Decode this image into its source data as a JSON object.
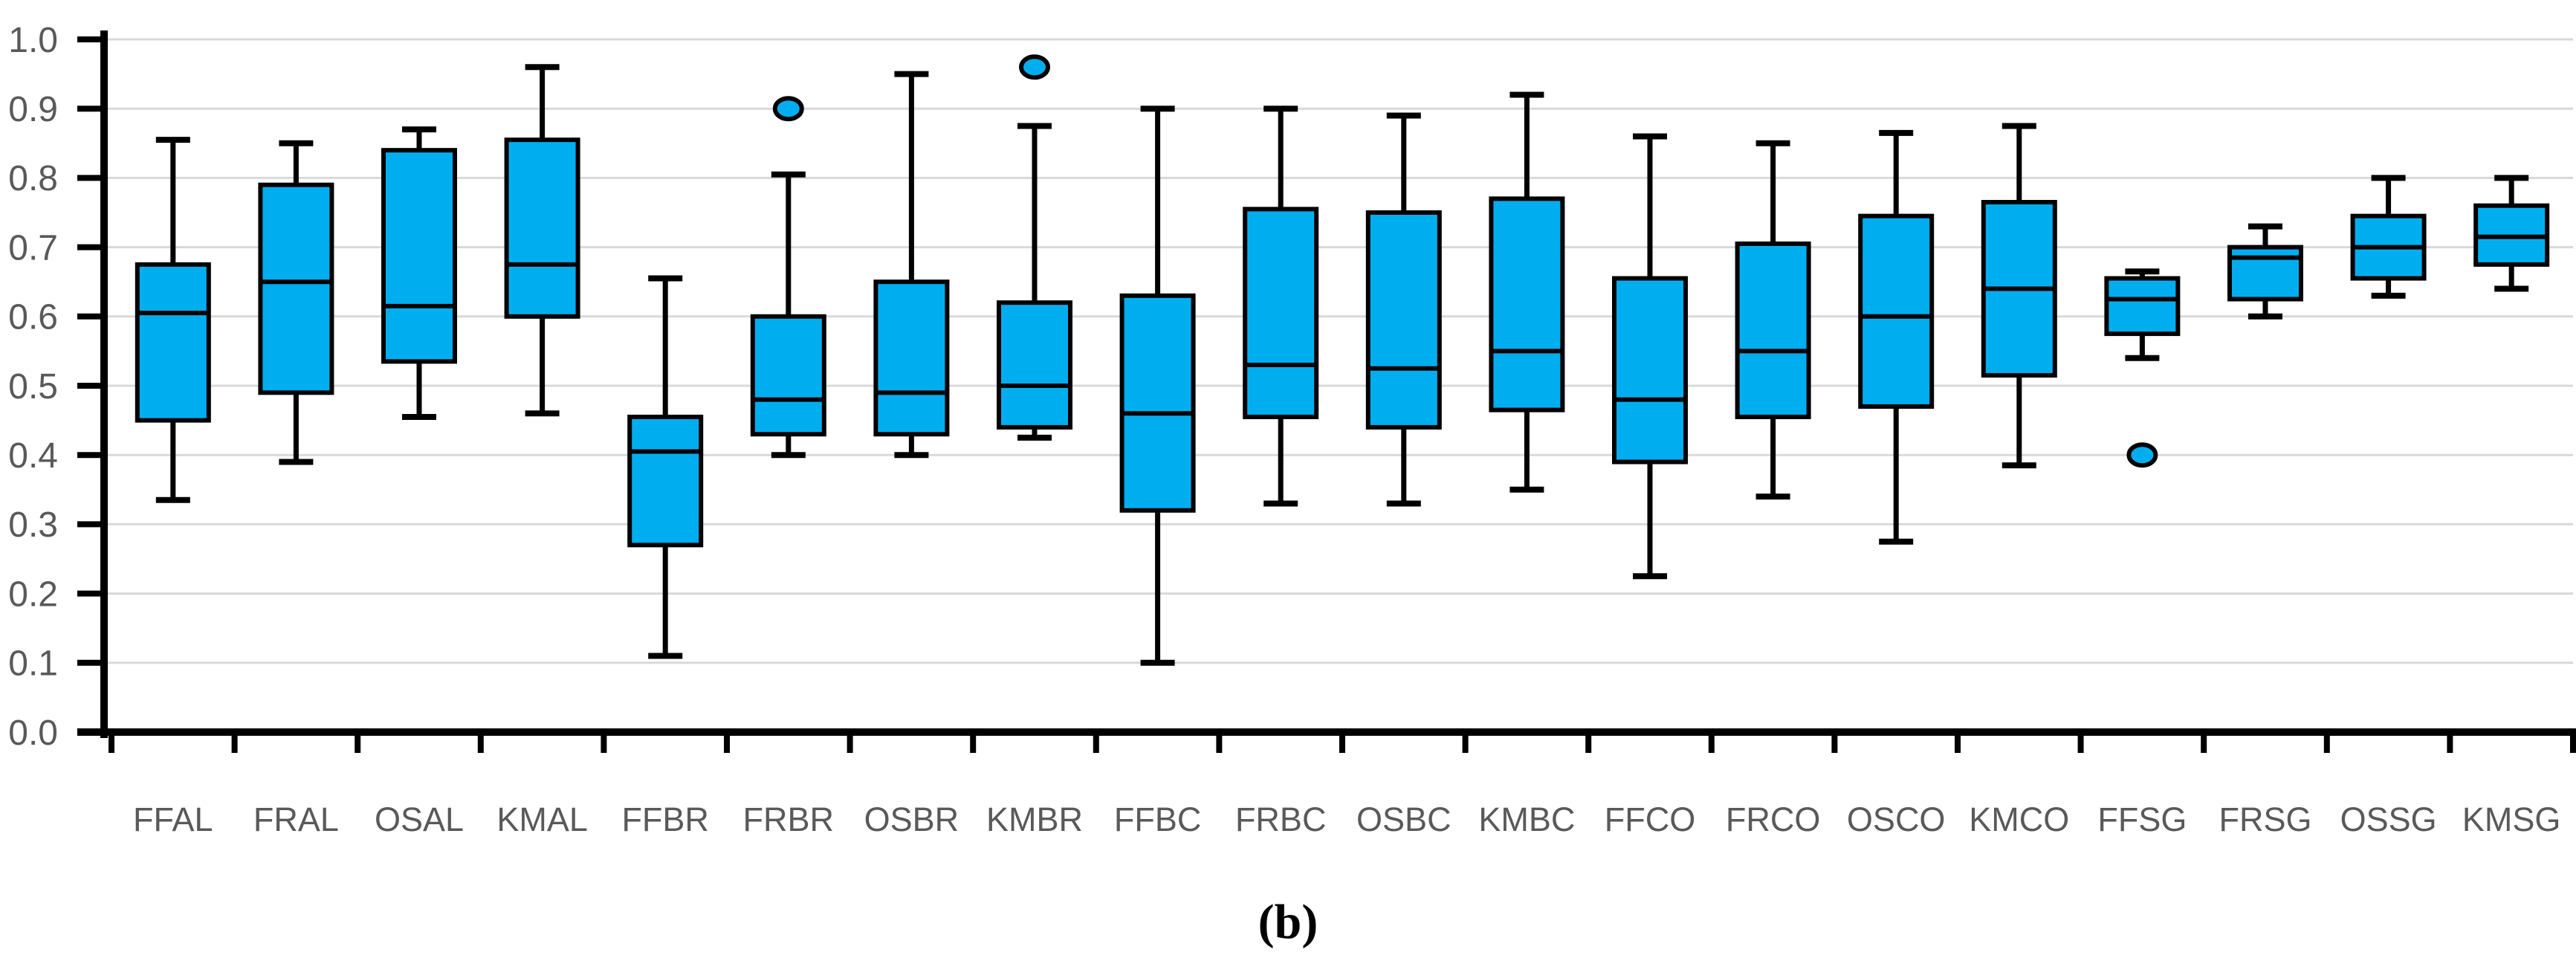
{
  "figure": {
    "caption": "(b)",
    "background": "#FFFFFF"
  },
  "chart_data": {
    "type": "box",
    "title": "",
    "xlabel": "",
    "ylabel": "",
    "ylim": [
      0.0,
      1.0
    ],
    "grid": true,
    "ytick_labels": [
      "0.0",
      "0.1",
      "0.2",
      "0.3",
      "0.4",
      "0.5",
      "0.6",
      "0.7",
      "0.8",
      "0.9",
      "1.0"
    ],
    "categories": [
      "FFAL",
      "FRAL",
      "OSAL",
      "KMAL",
      "FFBR",
      "FRBR",
      "OSBR",
      "KMBR",
      "FFBC",
      "FRBC",
      "OSBC",
      "KMBC",
      "FFCO",
      "FRCO",
      "OSCO",
      "KMCO",
      "FFSG",
      "FRSG",
      "OSSG",
      "KMSG"
    ],
    "boxes": [
      {
        "label": "FFAL",
        "whisker_low": 0.335,
        "q1": 0.45,
        "median": 0.605,
        "q3": 0.675,
        "whisker_high": 0.855,
        "outliers": []
      },
      {
        "label": "FRAL",
        "whisker_low": 0.39,
        "q1": 0.49,
        "median": 0.65,
        "q3": 0.79,
        "whisker_high": 0.85,
        "outliers": []
      },
      {
        "label": "OSAL",
        "whisker_low": 0.455,
        "q1": 0.535,
        "median": 0.615,
        "q3": 0.84,
        "whisker_high": 0.87,
        "outliers": []
      },
      {
        "label": "KMAL",
        "whisker_low": 0.46,
        "q1": 0.6,
        "median": 0.675,
        "q3": 0.855,
        "whisker_high": 0.96,
        "outliers": []
      },
      {
        "label": "FFBR",
        "whisker_low": 0.11,
        "q1": 0.27,
        "median": 0.405,
        "q3": 0.455,
        "whisker_high": 0.655,
        "outliers": []
      },
      {
        "label": "FRBR",
        "whisker_low": 0.4,
        "q1": 0.43,
        "median": 0.48,
        "q3": 0.6,
        "whisker_high": 0.805,
        "outliers": [
          0.9
        ]
      },
      {
        "label": "OSBR",
        "whisker_low": 0.4,
        "q1": 0.43,
        "median": 0.49,
        "q3": 0.65,
        "whisker_high": 0.95,
        "outliers": []
      },
      {
        "label": "KMBR",
        "whisker_low": 0.425,
        "q1": 0.44,
        "median": 0.5,
        "q3": 0.62,
        "whisker_high": 0.875,
        "outliers": [
          0.96
        ]
      },
      {
        "label": "FFBC",
        "whisker_low": 0.1,
        "q1": 0.32,
        "median": 0.46,
        "q3": 0.63,
        "whisker_high": 0.9,
        "outliers": []
      },
      {
        "label": "FRBC",
        "whisker_low": 0.33,
        "q1": 0.455,
        "median": 0.53,
        "q3": 0.755,
        "whisker_high": 0.9,
        "outliers": []
      },
      {
        "label": "OSBC",
        "whisker_low": 0.33,
        "q1": 0.44,
        "median": 0.525,
        "q3": 0.75,
        "whisker_high": 0.89,
        "outliers": []
      },
      {
        "label": "KMBC",
        "whisker_low": 0.35,
        "q1": 0.465,
        "median": 0.55,
        "q3": 0.77,
        "whisker_high": 0.92,
        "outliers": []
      },
      {
        "label": "FFCO",
        "whisker_low": 0.225,
        "q1": 0.39,
        "median": 0.48,
        "q3": 0.655,
        "whisker_high": 0.86,
        "outliers": []
      },
      {
        "label": "FRCO",
        "whisker_low": 0.34,
        "q1": 0.455,
        "median": 0.55,
        "q3": 0.705,
        "whisker_high": 0.85,
        "outliers": []
      },
      {
        "label": "OSCO",
        "whisker_low": 0.275,
        "q1": 0.47,
        "median": 0.6,
        "q3": 0.745,
        "whisker_high": 0.865,
        "outliers": []
      },
      {
        "label": "KMCO",
        "whisker_low": 0.385,
        "q1": 0.515,
        "median": 0.64,
        "q3": 0.765,
        "whisker_high": 0.875,
        "outliers": []
      },
      {
        "label": "FFSG",
        "whisker_low": 0.54,
        "q1": 0.575,
        "median": 0.625,
        "q3": 0.655,
        "whisker_high": 0.665,
        "outliers": [
          0.4
        ]
      },
      {
        "label": "FRSG",
        "whisker_low": 0.6,
        "q1": 0.625,
        "median": 0.685,
        "q3": 0.7,
        "whisker_high": 0.73,
        "outliers": []
      },
      {
        "label": "OSSG",
        "whisker_low": 0.63,
        "q1": 0.655,
        "median": 0.7,
        "q3": 0.745,
        "whisker_high": 0.8,
        "outliers": []
      },
      {
        "label": "KMSG",
        "whisker_low": 0.64,
        "q1": 0.675,
        "median": 0.715,
        "q3": 0.76,
        "whisker_high": 0.8,
        "outliers": []
      }
    ],
    "legend": null,
    "colors": {
      "box_fill": "#00AEEF",
      "box_stroke": "#000000",
      "gridline": "#D9D9D9",
      "axis": "#000000",
      "tick_label": "#595959"
    }
  }
}
